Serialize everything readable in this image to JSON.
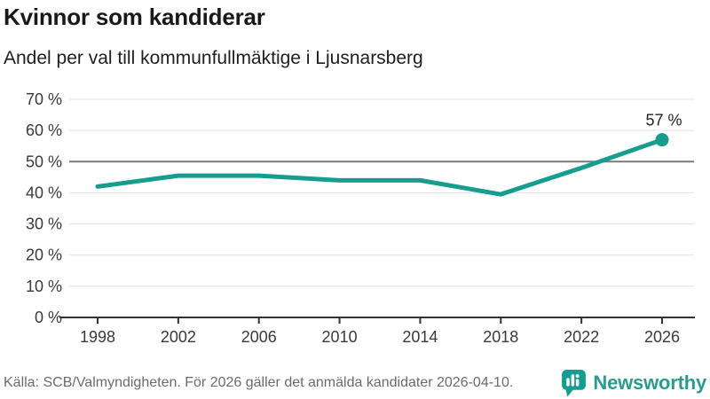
{
  "header": {
    "title": "Kvinnor som kandiderar",
    "subtitle": "Andel per val till kommunfullmäktige i Ljusnarsberg"
  },
  "chart_data": {
    "type": "line",
    "title": "Kvinnor som kandiderar",
    "subtitle": "Andel per val till kommunfullmäktige i Ljusnarsberg",
    "x": [
      1998,
      2002,
      2006,
      2010,
      2014,
      2018,
      2022,
      2026
    ],
    "xtick_labels": [
      "1998",
      "2002",
      "2006",
      "2010",
      "2014",
      "2018",
      "2022",
      "2026"
    ],
    "values": [
      42,
      45.5,
      45.5,
      44,
      44,
      39.5,
      48,
      57
    ],
    "ylim": [
      0,
      70
    ],
    "ytick_step": 10,
    "ytick_suffix": " %",
    "grid": true,
    "reference_line": 50,
    "end_label": "57 %",
    "legend_position": "none",
    "xlabel": "",
    "ylabel": ""
  },
  "footer": {
    "source": "Källa: SCB/Valmyndigheten. För 2026 gäller det anmälda kandidater 2026-04-10.",
    "logo_text": "Newsworthy"
  },
  "colors": {
    "accent": "#169d8d",
    "logo": "#2b9b8f",
    "grid": "#e1e1e1",
    "reference": "#7a7a7a",
    "axis": "#333333",
    "tick_text": "#3a3a3a",
    "title_text": "#191919",
    "source_text": "#6b6b6b"
  }
}
